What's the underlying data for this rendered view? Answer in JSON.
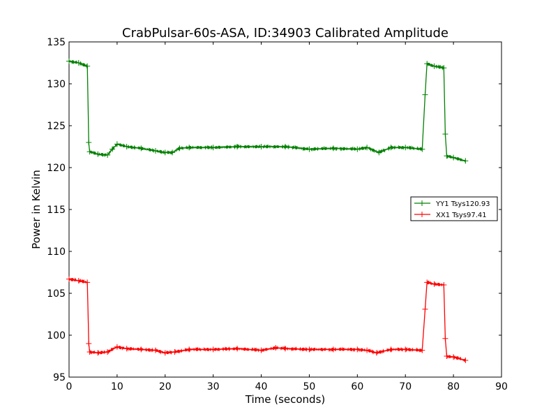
{
  "chart_data": {
    "type": "line",
    "title": "CrabPulsar-60s-ASA, ID:34903 Calibrated Amplitude",
    "xlabel": "Time (seconds)",
    "ylabel": "Power in Kelvin",
    "xlim": [
      0,
      90
    ],
    "ylim": [
      95,
      135
    ],
    "xticks": [
      0,
      10,
      20,
      30,
      40,
      50,
      60,
      70,
      80,
      90
    ],
    "yticks": [
      95,
      100,
      105,
      110,
      115,
      120,
      125,
      130,
      135
    ],
    "legend_position": "right",
    "series": [
      {
        "name": "YY1 Tsys120.93",
        "color": "#008000",
        "marker": "+",
        "x": [
          0,
          2,
          3.8,
          4.1,
          4.3,
          6,
          8,
          9,
          10,
          12,
          15,
          18,
          20,
          21.5,
          23,
          25,
          30,
          35,
          40,
          45,
          50,
          55,
          60,
          62,
          64.5,
          67,
          70,
          73.5,
          74.1,
          74.5,
          76,
          78,
          78.3,
          78.6,
          80,
          82.5
        ],
        "y": [
          132.7,
          132.5,
          132.1,
          123.0,
          121.9,
          121.6,
          121.5,
          122.2,
          122.8,
          122.5,
          122.3,
          122.0,
          121.8,
          121.8,
          122.3,
          122.4,
          122.4,
          122.5,
          122.5,
          122.5,
          122.2,
          122.3,
          122.2,
          122.4,
          121.8,
          122.4,
          122.4,
          122.2,
          128.7,
          132.4,
          132.1,
          131.9,
          124.0,
          121.4,
          121.2,
          120.8
        ]
      },
      {
        "name": "XX1 Tsys97.41",
        "color": "#ff0000",
        "marker": "+",
        "x": [
          0,
          2,
          3.8,
          4.1,
          4.3,
          6,
          8,
          10,
          12,
          15,
          18,
          20,
          22,
          25,
          30,
          35,
          40,
          43,
          45,
          50,
          55,
          60,
          62,
          64,
          67,
          70,
          73.5,
          74.1,
          74.5,
          76,
          78,
          78.3,
          78.6,
          80,
          82.5
        ],
        "y": [
          106.7,
          106.5,
          106.3,
          99.0,
          98.0,
          97.9,
          98.0,
          98.6,
          98.4,
          98.3,
          98.2,
          97.9,
          98.0,
          98.3,
          98.3,
          98.4,
          98.2,
          98.5,
          98.4,
          98.3,
          98.3,
          98.3,
          98.2,
          97.9,
          98.3,
          98.3,
          98.2,
          103.1,
          106.3,
          106.1,
          106.0,
          99.6,
          97.5,
          97.4,
          97.0
        ]
      }
    ]
  }
}
